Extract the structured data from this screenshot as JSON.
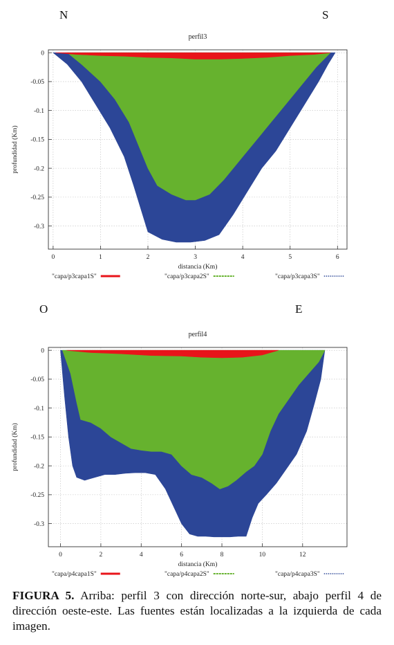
{
  "panels": [
    {
      "dir_left": "N",
      "dir_right": "S",
      "chart_data": {
        "type": "area",
        "title": "perfil3",
        "xlabel": "distancia (Km)",
        "ylabel": "profundidad (Km)",
        "xlim": [
          -0.1,
          6.2
        ],
        "ylim": [
          -0.34,
          0.005
        ],
        "xticks": [
          "0",
          "1",
          "2",
          "3",
          "4",
          "5",
          "6"
        ],
        "yticks": [
          "0",
          "-0.05",
          "-0.1",
          "-0.15",
          "-0.2",
          "-0.25",
          "-0.3"
        ],
        "grid": true,
        "legend_position": "bottom",
        "series": [
          {
            "name": "\"capa/p3capa1S\"",
            "color": "#e8141a",
            "x": [
              0.05,
              0.5,
              1.0,
              1.5,
              2.0,
              2.5,
              3.0,
              3.5,
              4.0,
              4.5,
              5.0,
              5.5,
              5.85
            ],
            "y": [
              0,
              -0.003,
              -0.005,
              -0.006,
              -0.008,
              -0.009,
              -0.011,
              -0.011,
              -0.01,
              -0.008,
              -0.005,
              -0.003,
              0
            ]
          },
          {
            "name": "\"capa/p3capa2S\"",
            "color": "#66b22e",
            "x": [
              0.3,
              0.6,
              1.0,
              1.3,
              1.6,
              1.8,
              2.0,
              2.2,
              2.5,
              2.8,
              3.0,
              3.3,
              3.6,
              4.0,
              4.4,
              4.8,
              5.2,
              5.55,
              5.85
            ],
            "y": [
              0,
              -0.02,
              -0.05,
              -0.08,
              -0.12,
              -0.16,
              -0.2,
              -0.23,
              -0.245,
              -0.255,
              -0.255,
              -0.245,
              -0.22,
              -0.18,
              -0.14,
              -0.1,
              -0.06,
              -0.025,
              0
            ]
          },
          {
            "name": "\"capa/p3capa3S\"",
            "color": "#2c4697",
            "x": [
              0,
              0.3,
              0.6,
              0.9,
              1.2,
              1.5,
              1.7,
              1.85,
              2.0,
              2.3,
              2.6,
              2.9,
              3.2,
              3.5,
              3.8,
              4.1,
              4.4,
              4.7,
              5.0,
              5.3,
              5.6,
              5.8,
              5.95
            ],
            "y": [
              0,
              -0.02,
              -0.05,
              -0.09,
              -0.13,
              -0.18,
              -0.23,
              -0.27,
              -0.31,
              -0.323,
              -0.328,
              -0.328,
              -0.325,
              -0.315,
              -0.28,
              -0.24,
              -0.2,
              -0.17,
              -0.13,
              -0.09,
              -0.05,
              -0.02,
              0
            ]
          }
        ]
      }
    },
    {
      "dir_left": "O",
      "dir_right": "E",
      "chart_data": {
        "type": "area",
        "title": "perfil4",
        "xlabel": "distancia (Km)",
        "ylabel": "profundidad (Km)",
        "xlim": [
          -0.6,
          14.2
        ],
        "ylim": [
          -0.34,
          0.005
        ],
        "xticks": [
          "0",
          "2",
          "4",
          "6",
          "8",
          "10",
          "12"
        ],
        "yticks": [
          "0",
          "-0.05",
          "-0.1",
          "-0.15",
          "-0.2",
          "-0.25",
          "-0.3"
        ],
        "grid": true,
        "legend_position": "bottom",
        "series": [
          {
            "name": "\"capa/p4capa1S\"",
            "color": "#e8141a",
            "x": [
              0.3,
              1.5,
              3.0,
              4.5,
              6.0,
              7.0,
              8.0,
              9.0,
              10.0,
              10.8
            ],
            "y": [
              0,
              -0.004,
              -0.006,
              -0.009,
              -0.01,
              -0.012,
              -0.013,
              -0.012,
              -0.008,
              0
            ]
          },
          {
            "name": "\"capa/p4capa2S\"",
            "color": "#66b22e",
            "x": [
              0.1,
              0.5,
              0.8,
              1.0,
              1.5,
              2.0,
              2.5,
              3.0,
              3.5,
              4.0,
              4.5,
              5.0,
              5.5,
              6.0,
              6.5,
              7.0,
              7.5,
              7.9,
              8.3,
              8.7,
              9.2,
              9.6,
              10.0,
              10.4,
              10.8,
              11.3,
              11.8,
              12.3,
              12.8,
              13.1
            ],
            "y": [
              0,
              -0.04,
              -0.09,
              -0.12,
              -0.125,
              -0.135,
              -0.15,
              -0.16,
              -0.17,
              -0.173,
              -0.175,
              -0.175,
              -0.18,
              -0.2,
              -0.215,
              -0.22,
              -0.23,
              -0.24,
              -0.235,
              -0.225,
              -0.21,
              -0.2,
              -0.18,
              -0.14,
              -0.11,
              -0.085,
              -0.06,
              -0.04,
              -0.02,
              0
            ]
          },
          {
            "name": "\"capa/p4capa3S\"",
            "color": "#2c4697",
            "x": [
              0,
              0.2,
              0.4,
              0.6,
              0.8,
              1.2,
              1.7,
              2.2,
              2.7,
              3.2,
              3.7,
              4.2,
              4.7,
              5.2,
              5.6,
              6.0,
              6.4,
              6.8,
              7.2,
              7.6,
              8.0,
              8.4,
              8.8,
              9.2,
              9.5,
              9.8,
              10.2,
              10.7,
              11.2,
              11.7,
              12.2,
              12.6,
              12.9,
              13.1
            ],
            "y": [
              0,
              -0.08,
              -0.15,
              -0.2,
              -0.22,
              -0.225,
              -0.22,
              -0.215,
              -0.215,
              -0.213,
              -0.212,
              -0.212,
              -0.215,
              -0.24,
              -0.27,
              -0.3,
              -0.318,
              -0.322,
              -0.322,
              -0.323,
              -0.323,
              -0.323,
              -0.322,
              -0.322,
              -0.29,
              -0.265,
              -0.25,
              -0.23,
              -0.205,
              -0.18,
              -0.14,
              -0.09,
              -0.05,
              0
            ]
          }
        ]
      }
    }
  ],
  "caption": {
    "label": "FIGURA 5.",
    "text": " Arriba: perfil 3 con dirección norte-sur, abajo perfil 4 de dirección oeste-este. Las fuentes están localizadas a la izquierda de cada imagen."
  }
}
